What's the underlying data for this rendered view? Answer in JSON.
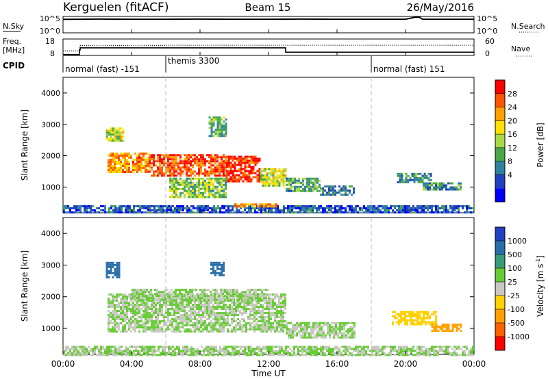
{
  "header": {
    "station": "Kerguelen (fitACF)",
    "beam": "Beam 15",
    "date": "26/May/2016"
  },
  "panels": {
    "nsky": {
      "left_label": "N.Sky",
      "right_label": "N.Search",
      "left_ticks": [
        "10^5",
        "10^0"
      ],
      "right_ticks": [
        "10^5",
        "10^0"
      ]
    },
    "freq": {
      "left_label_1": "Freq.",
      "left_label_2": "[MHz]",
      "right_label": "Nave",
      "left_ticks": [
        "18",
        "8"
      ],
      "right_ticks": [
        "60",
        "0"
      ]
    },
    "cpid": {
      "label": "CPID",
      "segments": [
        "normal (fast) -151",
        "themis 3300",
        "normal (fast) 151"
      ]
    }
  },
  "power_panel": {
    "ylabel": "Slant Range [km]",
    "colorbar_label": "Power [dB]",
    "colorbar_ticks": [
      "28",
      "24",
      "20",
      "16",
      "12",
      "8",
      "4"
    ],
    "colorbar_colors": [
      "#ff0000",
      "#ff5500",
      "#ffa000",
      "#ffe000",
      "#a8d848",
      "#48a848",
      "#3080a0",
      "#2040c0",
      "#0000ff"
    ]
  },
  "velocity_panel": {
    "ylabel": "Slant Range [km]",
    "colorbar_label_main": "Velocity",
    "colorbar_label_unit": "[m s",
    "colorbar_label_exp": "-1",
    "colorbar_label_end": "]",
    "colorbar_ticks": [
      "1000",
      "500",
      "100",
      "25",
      "-25",
      "-100",
      "-500",
      "-1000"
    ],
    "colorbar_colors": [
      "#2040c0",
      "#2a6ea8",
      "#3a9a78",
      "#66cc33",
      "#c8c8c0",
      "#ffd000",
      "#ffa000",
      "#ff6000",
      "#ff0000"
    ]
  },
  "x_axis": {
    "ticks": [
      "00:00",
      "04:00",
      "08:00",
      "12:00",
      "16:00",
      "20:00",
      "00:00"
    ],
    "label": "Time UT"
  },
  "chart_data": [
    {
      "type": "line",
      "panel": "N.Sky / N.Search",
      "x_unit": "hours UT",
      "xlim": [
        0,
        24
      ],
      "series": [
        {
          "name": "N.Sky",
          "x": [
            0,
            1,
            2,
            4,
            6,
            8,
            10,
            12,
            14,
            16,
            18,
            20,
            20.6,
            20.8,
            21,
            22,
            24
          ],
          "y": [
            0.85,
            0.86,
            0.87,
            0.86,
            0.86,
            0.87,
            0.86,
            0.86,
            0.87,
            0.86,
            0.86,
            0.86,
            1.0,
            1.0,
            0.86,
            0.86,
            0.86
          ]
        }
      ]
    },
    {
      "type": "line",
      "panel": "Freq. / Nave",
      "x_unit": "hours UT",
      "xlim": [
        0,
        24
      ],
      "series": [
        {
          "name": "Freq. [MHz]",
          "x": [
            0,
            0.95,
            0.95,
            1.0,
            1.0,
            13.0,
            13.0,
            24
          ],
          "y": [
            8.1,
            8.1,
            11.2,
            11.2,
            12.6,
            12.6,
            9.7,
            9.7
          ]
        },
        {
          "name": "Nave",
          "x": [
            0,
            1.0,
            1.0,
            6.0,
            6.0,
            18.0,
            18.0,
            24
          ],
          "y": [
            15,
            15,
            37,
            37,
            38,
            38,
            38,
            38
          ]
        }
      ]
    },
    {
      "type": "table",
      "panel": "CPID",
      "columns": [
        "start_hour",
        "end_hour",
        "program"
      ],
      "rows": [
        [
          0,
          6,
          "normal (fast) -151"
        ],
        [
          6,
          18,
          "themis 3300"
        ],
        [
          18,
          24,
          "normal (fast) 151"
        ]
      ]
    },
    {
      "type": "heatmap",
      "panel": "Power",
      "ylabel": "Slant Range [km]",
      "xlabel": "Time UT",
      "xlim": [
        0,
        24
      ],
      "ylim": [
        180,
        4500
      ],
      "yticks": [
        1000,
        2000,
        3000,
        4000
      ],
      "colorbar": {
        "label": "Power [dB]",
        "ticks": [
          4,
          8,
          12,
          16,
          20,
          24,
          28
        ],
        "range": [
          0,
          30
        ]
      },
      "regions": [
        {
          "t0": 2.6,
          "t1": 5.0,
          "r0": 1500,
          "r1": 2100,
          "value": 22
        },
        {
          "t0": 5.0,
          "t1": 9.5,
          "r0": 1350,
          "r1": 2050,
          "value": 25
        },
        {
          "t0": 9.5,
          "t1": 11.5,
          "r0": 1200,
          "r1": 2000,
          "value": 27
        },
        {
          "t0": 11.5,
          "t1": 13.0,
          "r0": 1050,
          "r1": 1600,
          "value": 16
        },
        {
          "t0": 13.0,
          "t1": 15.0,
          "r0": 850,
          "r1": 1300,
          "value": 11
        },
        {
          "t0": 15.0,
          "t1": 17.0,
          "r0": 750,
          "r1": 1050,
          "value": 8
        },
        {
          "t0": 6.2,
          "t1": 9.5,
          "r0": 700,
          "r1": 1300,
          "value": 14
        },
        {
          "t0": 2.5,
          "t1": 3.5,
          "r0": 2500,
          "r1": 2900,
          "value": 16
        },
        {
          "t0": 8.5,
          "t1": 9.5,
          "r0": 2650,
          "r1": 3250,
          "value": 12
        },
        {
          "t0": 19.5,
          "t1": 21.5,
          "r0": 1150,
          "r1": 1450,
          "value": 10
        },
        {
          "t0": 21.0,
          "t1": 23.2,
          "r0": 900,
          "r1": 1150,
          "value": 10
        },
        {
          "t0": 0,
          "t1": 24,
          "r0": 180,
          "r1": 420,
          "value": 6
        },
        {
          "t0": 10.0,
          "t1": 12.5,
          "r0": 350,
          "r1": 480,
          "value": 21
        }
      ]
    },
    {
      "type": "heatmap",
      "panel": "Velocity",
      "ylabel": "Slant Range [km]",
      "xlabel": "Time UT",
      "xlim": [
        0,
        24
      ],
      "ylim": [
        180,
        4500
      ],
      "yticks": [
        1000,
        2000,
        3000,
        4000
      ],
      "colorbar": {
        "label": "Velocity [m s-1]",
        "ticks": [
          1000,
          500,
          100,
          25,
          -25,
          -100,
          -500,
          -1000
        ]
      },
      "regions": [
        {
          "t0": 2.6,
          "t1": 13.0,
          "r0": 900,
          "r1": 2100,
          "value": 0
        },
        {
          "t0": 4.0,
          "t1": 12.0,
          "r0": 1900,
          "r1": 2250,
          "value": 0
        },
        {
          "t0": 13.0,
          "t1": 17.0,
          "r0": 700,
          "r1": 1200,
          "value": 0
        },
        {
          "t0": 19.2,
          "t1": 21.8,
          "r0": 1100,
          "r1": 1550,
          "value": -50
        },
        {
          "t0": 21.5,
          "t1": 23.3,
          "r0": 900,
          "r1": 1150,
          "value": -150
        },
        {
          "t0": 0,
          "t1": 24,
          "r0": 180,
          "r1": 450,
          "value": 0
        },
        {
          "t0": 2.5,
          "t1": 3.3,
          "r0": 2600,
          "r1": 3100,
          "value": 300
        },
        {
          "t0": 8.6,
          "t1": 9.4,
          "r0": 2700,
          "r1": 3100,
          "value": 200
        }
      ]
    }
  ]
}
